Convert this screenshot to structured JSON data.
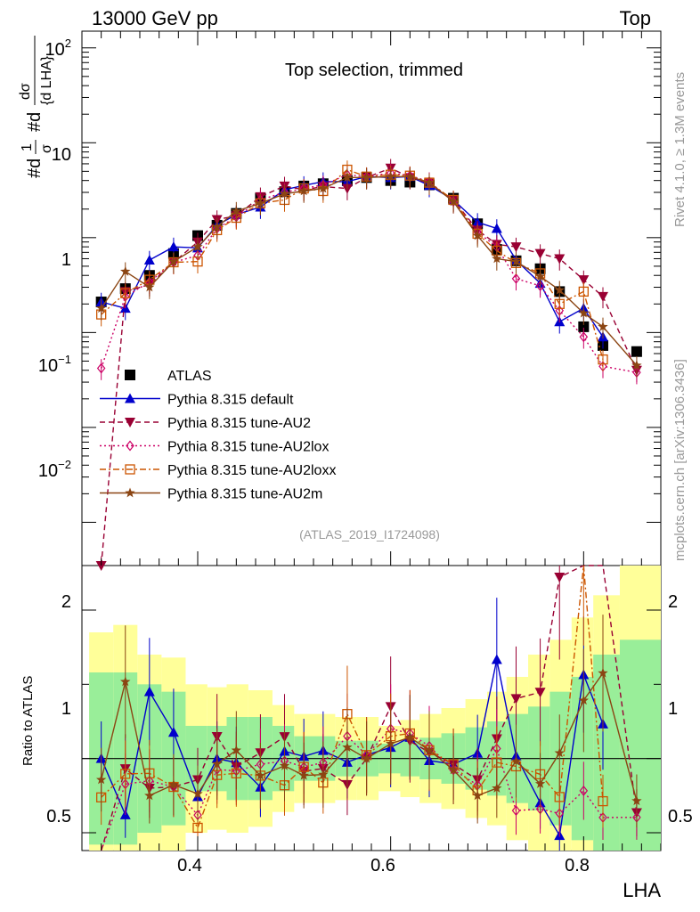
{
  "header": {
    "energy_label": "13000 GeV pp",
    "process_label": "Top"
  },
  "side": {
    "rivet_label": "Rivet 4.1.0, ≥ 1.3M events",
    "mcplots_label": "mcplots.cern.ch [arXiv:1306.3436]"
  },
  "chart_data": {
    "type": "line",
    "title": "Top selection, trimmed",
    "analysis_id": "(ATLAS_2019_I1724098)",
    "xlabel": "LHA",
    "ylabel_top": "1/σ dσ/d LHA",
    "ylabel_top_parts": {
      "num1": "1",
      "den1": "σ",
      "num2": "dσ",
      "den2": "{d LHA}",
      "prefix1": "#d",
      "prefix2": "#d"
    },
    "ylabel_ratio": "Ratio to ATLAS",
    "xlim": [
      0.28,
      0.88
    ],
    "ylim_top": [
      0.00035,
      150
    ],
    "ylim_ratio": [
      0.38,
      2.3
    ],
    "yscale_top": "log",
    "x_ticks": [
      "0.4",
      "0.6",
      "0.8"
    ],
    "y_ticks_top": {
      "sup2_base": "10",
      "sup2_exp": "2",
      "ten": "10",
      "one": "1",
      "sup_m1_base": "10",
      "sup_m1_exp": "−1",
      "sup_m2_base": "10",
      "sup_m2_exp": "−2"
    },
    "y_ticks_ratio": [
      "0.5",
      "1",
      "2"
    ],
    "x": [
      0.3,
      0.325,
      0.35,
      0.375,
      0.4,
      0.42,
      0.44,
      0.465,
      0.49,
      0.51,
      0.53,
      0.555,
      0.575,
      0.6,
      0.62,
      0.64,
      0.665,
      0.69,
      0.71,
      0.73,
      0.755,
      0.775,
      0.8,
      0.82,
      0.855
    ],
    "atlas_values": [
      0.21,
      0.29,
      0.4,
      0.68,
      1.05,
      1.35,
      1.8,
      2.6,
      3.05,
      3.5,
      3.7,
      4.0,
      4.3,
      4.0,
      3.85,
      3.6,
      2.6,
      1.4,
      0.75,
      0.57,
      0.47,
      0.27,
      0.115,
      0.073,
      0.063
    ],
    "band_inner": [
      0.58,
      0.58,
      0.5,
      0.45,
      0.22,
      0.22,
      0.28,
      0.28,
      0.22,
      0.15,
      0.15,
      0.12,
      0.12,
      0.1,
      0.12,
      0.14,
      0.17,
      0.21,
      0.25,
      0.3,
      0.35,
      0.45,
      0.55,
      0.7,
      0.8
    ],
    "band_outer": [
      0.85,
      0.9,
      0.7,
      0.68,
      0.5,
      0.48,
      0.5,
      0.46,
      0.36,
      0.3,
      0.3,
      0.28,
      0.28,
      0.22,
      0.26,
      0.3,
      0.34,
      0.4,
      0.45,
      0.55,
      0.7,
      0.8,
      0.95,
      1.1,
      1.3
    ],
    "series": [
      {
        "name": "ATLAS",
        "color": "#000000",
        "marker": "square",
        "values": [
          0.21,
          0.29,
          0.4,
          0.68,
          1.05,
          1.35,
          1.8,
          2.6,
          3.05,
          3.5,
          3.7,
          4.0,
          4.3,
          4.0,
          3.85,
          3.6,
          2.6,
          1.4,
          0.75,
          0.57,
          0.47,
          0.27,
          0.115,
          0.073,
          0.063
        ]
      },
      {
        "name": "Pythia 8.315 default",
        "color": "#0000cc",
        "dash": "",
        "marker": "triangle-up",
        "values": [
          0.21,
          0.18,
          0.58,
          0.8,
          0.78,
          1.35,
          1.75,
          2.1,
          3.2,
          3.55,
          3.9,
          3.9,
          4.4,
          4.3,
          4.4,
          3.55,
          2.5,
          1.45,
          1.25,
          0.58,
          0.33,
          0.13,
          0.18,
          0.09,
          null
        ]
      },
      {
        "name": "Pythia 8.315 tune-AU2",
        "color": "#990033",
        "dash": "6,4",
        "marker": "triangle-down",
        "values": [
          0.00035,
          0.27,
          0.32,
          0.55,
          0.9,
          1.55,
          1.7,
          2.7,
          3.5,
          3.2,
          3.45,
          3.3,
          4.3,
          5.4,
          4.3,
          3.75,
          2.5,
          1.2,
          0.85,
          0.8,
          0.68,
          0.6,
          0.36,
          0.24,
          0.04
        ]
      },
      {
        "name": "Pythia 8.315 tune-AU2lox",
        "color": "#cc0066",
        "dash": "2,3",
        "marker": "diamond",
        "values": [
          0.042,
          0.24,
          0.34,
          0.55,
          0.65,
          1.25,
          1.65,
          2.5,
          3.0,
          3.3,
          3.6,
          4.6,
          4.4,
          4.8,
          4.5,
          3.9,
          2.4,
          1.15,
          0.8,
          0.37,
          0.31,
          0.17,
          0.09,
          0.044,
          0.038
        ]
      },
      {
        "name": "Pythia 8.315 tune-AU2loxx",
        "color": "#cc5500",
        "dash": "7,3,2,3",
        "marker": "open-square",
        "values": [
          0.155,
          0.26,
          0.36,
          0.55,
          0.56,
          1.2,
          1.62,
          2.3,
          2.5,
          3.3,
          3.1,
          5.2,
          4.4,
          4.6,
          4.5,
          3.8,
          2.5,
          1.1,
          0.73,
          0.54,
          0.42,
          0.2,
          0.27,
          0.052,
          null
        ]
      },
      {
        "name": "Pythia 8.315 tune-AU2m",
        "color": "#8b4513",
        "dash": "",
        "marker": "star",
        "values": [
          0.18,
          0.44,
          0.3,
          0.56,
          0.8,
          1.3,
          1.9,
          2.3,
          2.9,
          3.1,
          3.3,
          4.3,
          4.3,
          4.4,
          4.4,
          3.8,
          2.4,
          1.05,
          0.6,
          0.56,
          0.39,
          0.28,
          0.16,
          0.115,
          0.045
        ]
      }
    ],
    "legend_position": "center-left"
  }
}
